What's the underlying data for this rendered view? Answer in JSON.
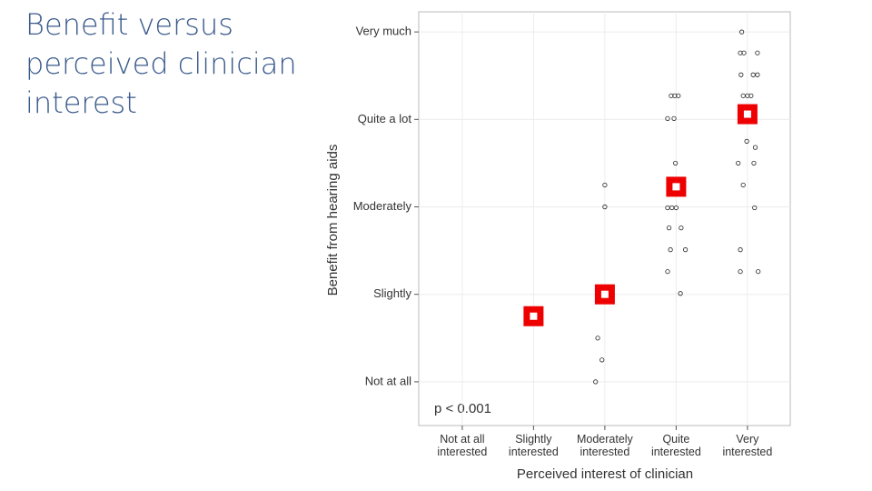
{
  "chart_data": {
    "type": "scatter",
    "title": "Benefit versus perceived clinician interest",
    "xlabel": "Perceived interest of clinician",
    "ylabel": "Benefit from hearing aids",
    "annotation": "p < 0.001",
    "xlim": [
      0.39,
      5.6
    ],
    "ylim": [
      -0.5,
      4.23
    ],
    "xticks": [
      {
        "value": 1,
        "label": "Not at all interested"
      },
      {
        "value": 2,
        "label": "Slightly interested"
      },
      {
        "value": 3,
        "label": "Moderately interested"
      },
      {
        "value": 4,
        "label": "Quite interested"
      },
      {
        "value": 5,
        "label": "Very interested"
      }
    ],
    "yticks": [
      {
        "value": 0,
        "label": "Not at all"
      },
      {
        "value": 1,
        "label": "Slightly"
      },
      {
        "value": 2,
        "label": "Moderately"
      },
      {
        "value": 3,
        "label": "Quite a lot"
      },
      {
        "value": 4,
        "label": "Very much"
      }
    ],
    "grid": true,
    "series": [
      {
        "color": "#222222",
        "marker": "circle",
        "x": [
          2.0,
          3.0,
          3.0,
          2.9,
          2.96,
          2.87,
          3.93,
          3.98,
          4.03,
          3.88,
          3.97,
          3.99,
          3.88,
          3.94,
          4.0,
          3.9,
          4.07,
          3.92,
          4.13,
          3.88,
          4.06,
          4.92,
          4.9,
          4.95,
          5.14,
          4.91,
          5.08,
          5.14,
          4.94,
          5.0,
          5.05,
          4.99,
          5.11,
          4.87,
          5.09,
          4.94,
          5.1,
          4.9,
          4.9,
          5.15
        ],
        "y": [
          0.75,
          2.25,
          2.0,
          0.5,
          0.25,
          0.0,
          3.27,
          3.27,
          3.27,
          3.01,
          3.01,
          2.5,
          1.99,
          1.99,
          1.99,
          1.76,
          1.76,
          1.51,
          1.51,
          1.26,
          1.01,
          4.0,
          3.76,
          3.76,
          3.76,
          3.51,
          3.51,
          3.51,
          3.27,
          3.27,
          3.27,
          2.75,
          2.68,
          2.5,
          2.5,
          2.25,
          1.99,
          1.51,
          1.26,
          1.26
        ]
      },
      {
        "color": "#ee0000",
        "marker": "square",
        "x": [
          2,
          3,
          4,
          5
        ],
        "y": [
          0.75,
          1.0,
          2.23,
          3.06
        ]
      }
    ]
  }
}
